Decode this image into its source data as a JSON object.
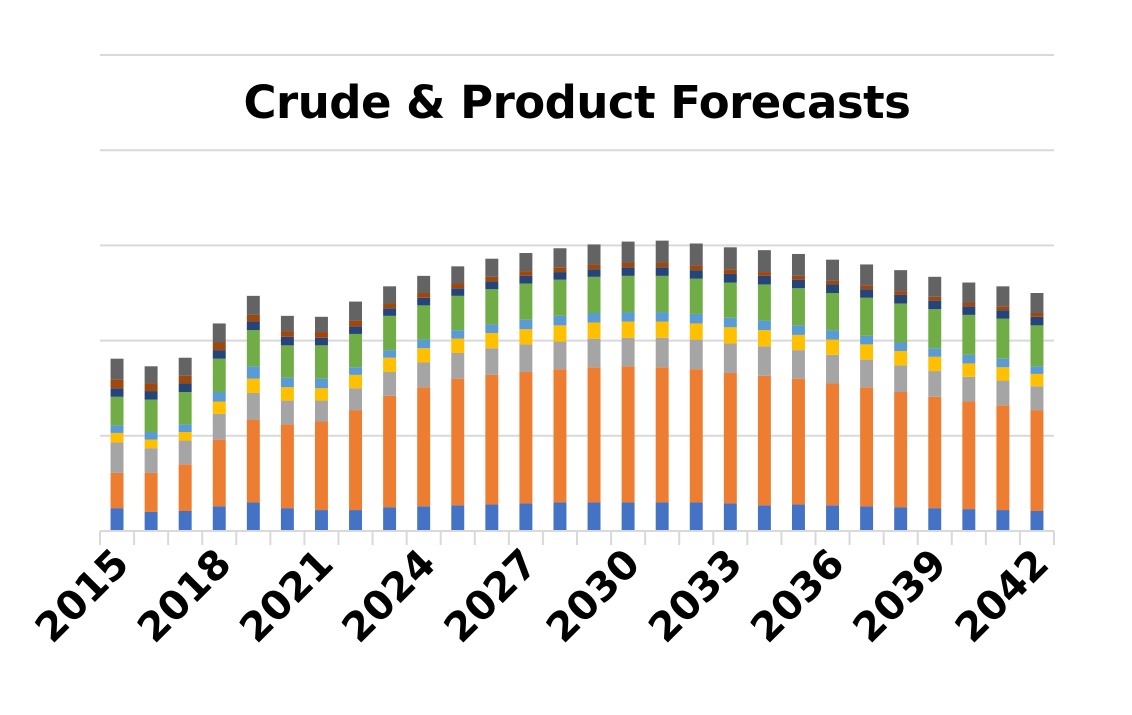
{
  "chart_data": {
    "type": "bar",
    "stacked": true,
    "title": "Crude & Product Forecasts",
    "xlabel": "",
    "ylabel": "",
    "ylim": [
      0,
      5
    ],
    "gridlines": true,
    "y_tick_labels_shown": false,
    "categories": [
      "2015",
      "2016",
      "2017",
      "2018",
      "2019",
      "2020",
      "2021",
      "2022",
      "2023",
      "2024",
      "2025",
      "2026",
      "2027",
      "2028",
      "2029",
      "2030",
      "2031",
      "2032",
      "2033",
      "2034",
      "2035",
      "2036",
      "2037",
      "2038",
      "2039",
      "2040",
      "2041",
      "2042"
    ],
    "x_tick_labels": [
      "2015",
      "2018",
      "2021",
      "2024",
      "2027",
      "2030",
      "2033",
      "2036",
      "2039",
      "2042"
    ],
    "series": [
      {
        "color": "#4472C4",
        "values": [
          0.24,
          0.2,
          0.21,
          0.26,
          0.3,
          0.24,
          0.22,
          0.22,
          0.25,
          0.26,
          0.27,
          0.28,
          0.29,
          0.3,
          0.3,
          0.3,
          0.3,
          0.3,
          0.29,
          0.27,
          0.28,
          0.27,
          0.26,
          0.25,
          0.24,
          0.23,
          0.22,
          0.21
        ]
      },
      {
        "color": "#ED7D31",
        "values": [
          0.37,
          0.41,
          0.49,
          0.7,
          0.87,
          0.88,
          0.93,
          1.05,
          1.17,
          1.25,
          1.33,
          1.36,
          1.38,
          1.4,
          1.42,
          1.43,
          1.42,
          1.4,
          1.37,
          1.36,
          1.32,
          1.28,
          1.25,
          1.21,
          1.17,
          1.13,
          1.1,
          1.06
        ]
      },
      {
        "color": "#A5A5A5",
        "values": [
          0.32,
          0.26,
          0.25,
          0.27,
          0.28,
          0.25,
          0.22,
          0.23,
          0.25,
          0.26,
          0.27,
          0.28,
          0.29,
          0.29,
          0.3,
          0.3,
          0.31,
          0.31,
          0.31,
          0.31,
          0.3,
          0.3,
          0.29,
          0.28,
          0.27,
          0.26,
          0.26,
          0.25
        ]
      },
      {
        "color": "#FFC000",
        "values": [
          0.1,
          0.09,
          0.09,
          0.13,
          0.15,
          0.14,
          0.13,
          0.14,
          0.15,
          0.15,
          0.15,
          0.16,
          0.16,
          0.17,
          0.17,
          0.17,
          0.17,
          0.17,
          0.17,
          0.17,
          0.16,
          0.16,
          0.16,
          0.15,
          0.15,
          0.14,
          0.14,
          0.13
        ]
      },
      {
        "color": "#5B9BD5",
        "values": [
          0.08,
          0.08,
          0.08,
          0.1,
          0.13,
          0.1,
          0.1,
          0.08,
          0.08,
          0.09,
          0.09,
          0.09,
          0.1,
          0.1,
          0.1,
          0.1,
          0.1,
          0.1,
          0.1,
          0.1,
          0.1,
          0.1,
          0.09,
          0.09,
          0.09,
          0.09,
          0.09,
          0.08
        ]
      },
      {
        "color": "#70AD47",
        "values": [
          0.3,
          0.34,
          0.34,
          0.35,
          0.38,
          0.34,
          0.35,
          0.35,
          0.36,
          0.36,
          0.36,
          0.37,
          0.38,
          0.38,
          0.38,
          0.38,
          0.38,
          0.37,
          0.37,
          0.38,
          0.39,
          0.39,
          0.4,
          0.41,
          0.41,
          0.42,
          0.42,
          0.43
        ]
      },
      {
        "color": "#264478",
        "values": [
          0.09,
          0.09,
          0.09,
          0.09,
          0.09,
          0.09,
          0.08,
          0.08,
          0.08,
          0.08,
          0.08,
          0.08,
          0.08,
          0.08,
          0.08,
          0.09,
          0.09,
          0.09,
          0.09,
          0.09,
          0.09,
          0.09,
          0.09,
          0.09,
          0.09,
          0.09,
          0.09,
          0.09
        ]
      },
      {
        "color": "#9E480E",
        "values": [
          0.09,
          0.08,
          0.08,
          0.08,
          0.07,
          0.06,
          0.06,
          0.06,
          0.05,
          0.05,
          0.05,
          0.05,
          0.05,
          0.05,
          0.05,
          0.05,
          0.05,
          0.05,
          0.05,
          0.04,
          0.04,
          0.04,
          0.04,
          0.04,
          0.04,
          0.04,
          0.04,
          0.04
        ]
      },
      {
        "color": "#636363",
        "values": [
          0.22,
          0.18,
          0.19,
          0.2,
          0.2,
          0.16,
          0.16,
          0.2,
          0.18,
          0.18,
          0.18,
          0.19,
          0.19,
          0.2,
          0.21,
          0.22,
          0.23,
          0.23,
          0.23,
          0.23,
          0.23,
          0.22,
          0.22,
          0.22,
          0.21,
          0.21,
          0.21,
          0.21
        ]
      }
    ]
  }
}
